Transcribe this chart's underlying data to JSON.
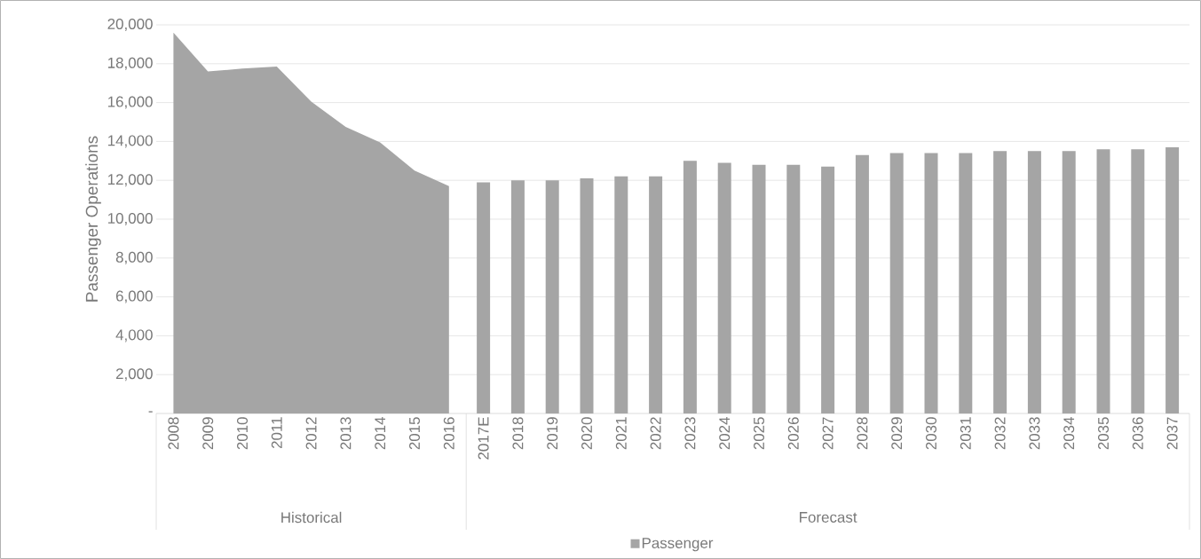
{
  "chart_data": {
    "type": "bar",
    "ylabel": "Passenger Operations",
    "categories": [
      "2008",
      "2009",
      "2010",
      "2011",
      "2012",
      "2013",
      "2014",
      "2015",
      "2016",
      "2017E",
      "2018",
      "2019",
      "2020",
      "2021",
      "2022",
      "2023",
      "2024",
      "2025",
      "2026",
      "2027",
      "2028",
      "2029",
      "2030",
      "2031",
      "2032",
      "2033",
      "2034",
      "2035",
      "2036",
      "2037"
    ],
    "series": [
      {
        "type": "area",
        "color": "#a5a5a5",
        "values": [
          19600,
          17600,
          17750,
          17850,
          16050,
          14750,
          13950,
          12500,
          11700,
          null,
          null,
          null,
          null,
          null,
          null,
          null,
          null,
          null,
          null,
          null,
          null,
          null,
          null,
          null,
          null,
          null,
          null,
          null,
          null,
          null
        ]
      },
      {
        "name": "Passenger",
        "color": "#a5a5a5",
        "values": [
          null,
          null,
          null,
          null,
          null,
          null,
          null,
          null,
          null,
          11900,
          12000,
          12000,
          12100,
          12200,
          12200,
          13000,
          12900,
          12800,
          12800,
          12700,
          13300,
          13400,
          13400,
          13400,
          13500,
          13500,
          13500,
          13600,
          13600,
          13700
        ]
      }
    ],
    "ylim": [
      0,
      20000
    ],
    "yticks": [
      {
        "value": 0,
        "label": "-"
      },
      {
        "value": 2000,
        "label": "2,000"
      },
      {
        "value": 4000,
        "label": "4,000"
      },
      {
        "value": 6000,
        "label": "6,000"
      },
      {
        "value": 8000,
        "label": "8,000"
      },
      {
        "value": 10000,
        "label": "10,000"
      },
      {
        "value": 12000,
        "label": "12,000"
      },
      {
        "value": 14000,
        "label": "14,000"
      },
      {
        "value": 16000,
        "label": "16,000"
      },
      {
        "value": 18000,
        "label": "18,000"
      },
      {
        "value": 20000,
        "label": "20,000"
      }
    ],
    "annotations": [
      "Historical",
      "Forecast"
    ],
    "grid": "y",
    "legend": "bottom"
  }
}
